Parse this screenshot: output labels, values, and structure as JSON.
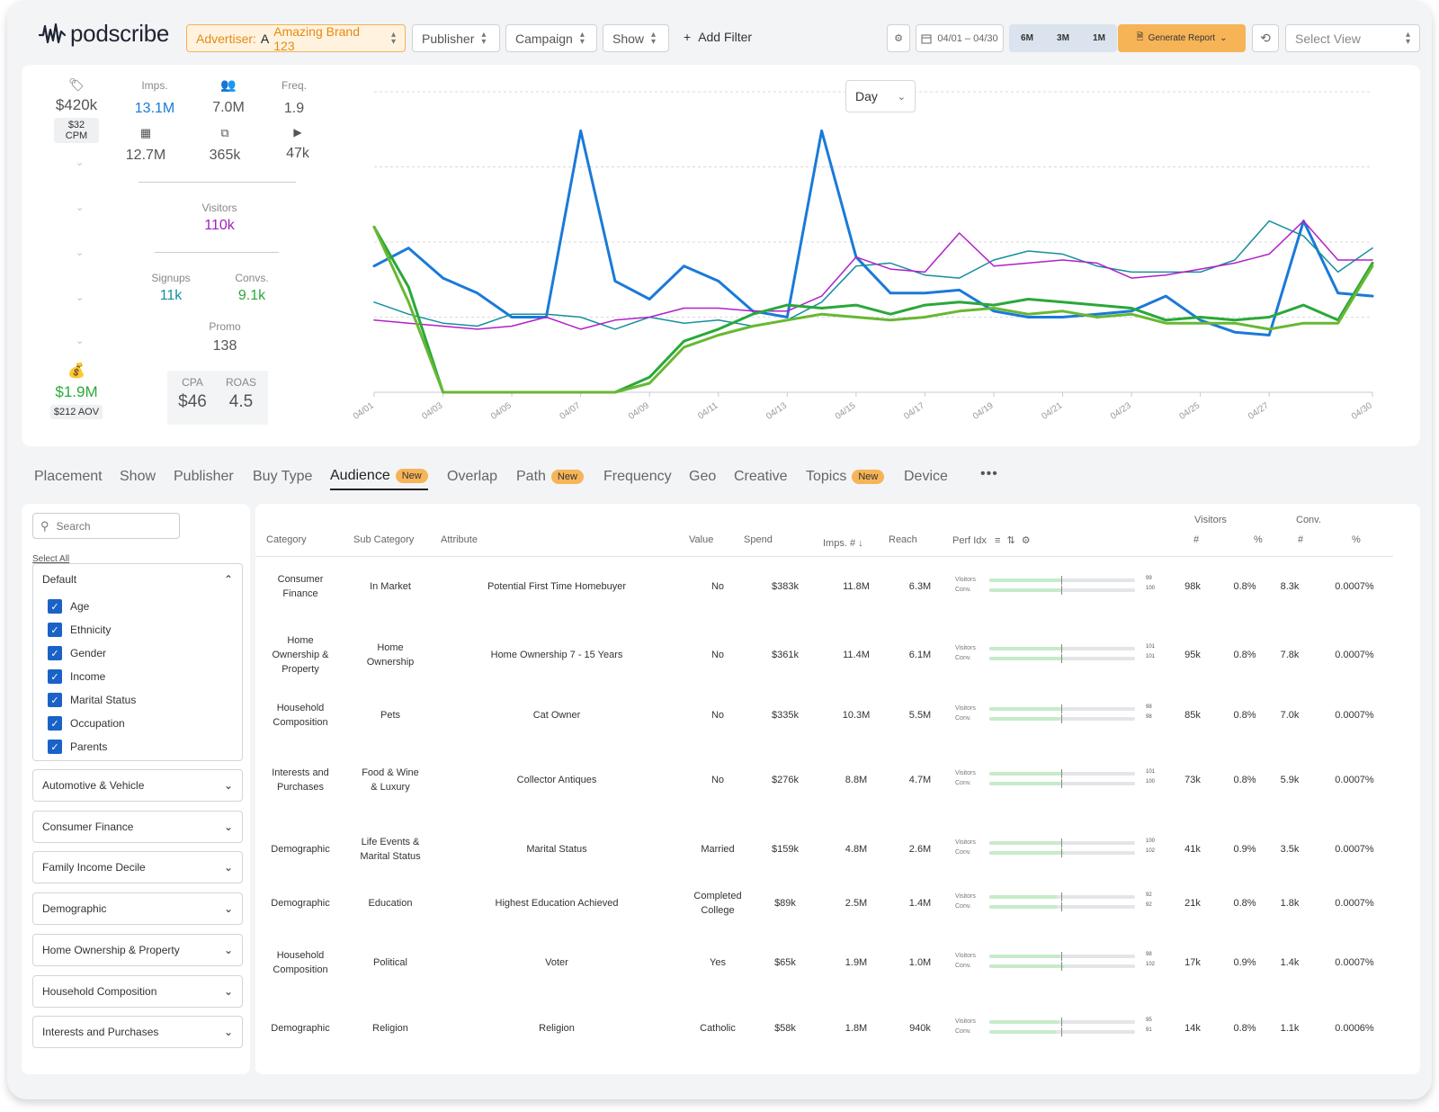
{
  "header": {
    "logo": "podscribe",
    "advertiser_label": "Advertiser:",
    "advertiser_initial": "A",
    "advertiser_value": "Amazing Brand 123",
    "publisher": "Publisher",
    "campaign": "Campaign",
    "show": "Show",
    "add_filter": "Add Filter",
    "date_range": "04/01 – 04/30",
    "ranges": [
      "6M",
      "3M",
      "1M"
    ],
    "generate_report": "Generate Report",
    "select_view": "Select View"
  },
  "kpi": {
    "spend": "$420k",
    "cpm": "$32 CPM",
    "imps_label": "Imps.",
    "imps": "13.1M",
    "reach": "7.0M",
    "freq_label": "Freq.",
    "freq": "1.9",
    "rss": "12.7M",
    "devices": "365k",
    "youtube": "47k",
    "visitors_label": "Visitors",
    "visitors": "110k",
    "signups_label": "Signups",
    "signups": "11k",
    "convs_label": "Convs.",
    "convs": "9.1k",
    "promo_label": "Promo",
    "promo": "138",
    "revenue": "$1.9M",
    "aov": "$212 AOV",
    "cpa_label": "CPA",
    "cpa": "$46",
    "roas_label": "ROAS",
    "roas": "4.5"
  },
  "chart_data": {
    "type": "line",
    "granularity": "Day",
    "x": [
      "04/01",
      "04/02",
      "04/03",
      "04/04",
      "04/05",
      "04/06",
      "04/07",
      "04/08",
      "04/09",
      "04/10",
      "04/11",
      "04/12",
      "04/13",
      "04/14",
      "04/15",
      "04/16",
      "04/17",
      "04/18",
      "04/19",
      "04/20",
      "04/21",
      "04/22",
      "04/23",
      "04/24",
      "04/25",
      "04/26",
      "04/27",
      "04/28",
      "04/29",
      "04/30"
    ],
    "xticks": [
      "04/01",
      "04/03",
      "04/05",
      "04/07",
      "04/09",
      "04/11",
      "04/13",
      "04/15",
      "04/17",
      "04/19",
      "04/21",
      "04/23",
      "04/25",
      "04/27",
      "04/30"
    ],
    "ylim": [
      0,
      100
    ],
    "series": [
      {
        "color": "#1a7ad8",
        "width": 3,
        "values": [
          42,
          48,
          38,
          33,
          25,
          25,
          87,
          37,
          31,
          42,
          37,
          27,
          25,
          87,
          45,
          33,
          33,
          34,
          27,
          25,
          25,
          26,
          27,
          32,
          24,
          20,
          19,
          57,
          33,
          32
        ]
      },
      {
        "color": "#168f9e",
        "width": 1.5,
        "values": [
          30,
          26,
          23,
          22,
          26,
          26,
          25,
          21,
          25,
          23,
          24,
          22,
          24,
          30,
          42,
          43,
          39,
          38,
          44,
          47,
          46,
          42,
          40,
          40,
          40,
          44,
          57,
          52,
          40,
          48
        ]
      },
      {
        "color": "#b120c9",
        "width": 1.5,
        "values": [
          24,
          23,
          22,
          21,
          22,
          25,
          21,
          24,
          25,
          28,
          28,
          27,
          27,
          32,
          45,
          41,
          40,
          53,
          42,
          43,
          44,
          43,
          38,
          39,
          41,
          43,
          46,
          57,
          44,
          44
        ]
      },
      {
        "color": "#2aa83a",
        "width": 3,
        "values": [
          55,
          35,
          0,
          0,
          0,
          0,
          0,
          0,
          5,
          17,
          21,
          26,
          29,
          28,
          29,
          26,
          29,
          30,
          29,
          31,
          30,
          29,
          28,
          24,
          25,
          24,
          25,
          29,
          24,
          43
        ]
      },
      {
        "color": "#68b832",
        "width": 3,
        "values": [
          55,
          30,
          0,
          0,
          0,
          0,
          0,
          0,
          3,
          15,
          19,
          22,
          24,
          26,
          25,
          24,
          25,
          27,
          28,
          26,
          27,
          25,
          26,
          23,
          23,
          23,
          21,
          23,
          23,
          42
        ]
      }
    ]
  },
  "tabs": [
    {
      "label": "Placement"
    },
    {
      "label": "Show"
    },
    {
      "label": "Publisher"
    },
    {
      "label": "Buy Type"
    },
    {
      "label": "Audience",
      "badge": "New"
    },
    {
      "label": "Overlap"
    },
    {
      "label": "Path",
      "badge": "New"
    },
    {
      "label": "Frequency"
    },
    {
      "label": "Geo"
    },
    {
      "label": "Creative"
    },
    {
      "label": "Topics",
      "badge": "New"
    },
    {
      "label": "Device"
    }
  ],
  "sidebar": {
    "search_placeholder": "Search",
    "select_all": "Select All",
    "default_group": "Default",
    "options": [
      "Age",
      "Ethnicity",
      "Gender",
      "Income",
      "Marital Status",
      "Occupation",
      "Parents"
    ],
    "groups": [
      "Automotive & Vehicle",
      "Consumer Finance",
      "Family Income Decile",
      "Demographic",
      "Home Ownership & Property",
      "Household Composition",
      "Interests and Purchases"
    ]
  },
  "table": {
    "group_visitors": "Visitors",
    "group_conv": "Conv.",
    "columns": {
      "category": "Category",
      "sub_category": "Sub Category",
      "attribute": "Attribute",
      "value": "Value",
      "spend": "Spend",
      "imps": "Imps.",
      "imps_hash": "#",
      "reach": "Reach",
      "perf": "Perf Idx",
      "vis_num": "#",
      "vis_pct": "%",
      "conv_num": "#",
      "conv_pct": "%"
    },
    "perf_labels": [
      "Visitors",
      "Conv."
    ],
    "rows": [
      {
        "category": "Consumer Finance",
        "sub": "In Market",
        "attr": "Potential First Time Homebuyer",
        "value": "No",
        "spend": "$383k",
        "imps": "11.8M",
        "reach": "6.3M",
        "pv": 99,
        "pc": 100,
        "pv_label": "99",
        "pc_label": "100",
        "vis": "98k",
        "vis_pct": "0.8%",
        "conv": "8.3k",
        "conv_pct": "0.0007%"
      },
      {
        "category": "Home Ownership & Property",
        "sub": "Home Ownership",
        "attr": "Home Ownership 7 - 15 Years",
        "value": "No",
        "spend": "$361k",
        "imps": "11.4M",
        "reach": "6.1M",
        "pv": 101,
        "pc": 101,
        "pv_label": "101",
        "pc_label": "101",
        "vis": "95k",
        "vis_pct": "0.8%",
        "conv": "7.8k",
        "conv_pct": "0.0007%"
      },
      {
        "category": "Household Composition",
        "sub": "Pets",
        "attr": "Cat Owner",
        "value": "No",
        "spend": "$335k",
        "imps": "10.3M",
        "reach": "5.5M",
        "pv": 98,
        "pc": 98,
        "pv_label": "98",
        "pc_label": "98",
        "vis": "85k",
        "vis_pct": "0.8%",
        "conv": "7.0k",
        "conv_pct": "0.0007%"
      },
      {
        "category": "Interests and Purchases",
        "sub": "Food & Wine & Luxury",
        "attr": "Collector Antiques",
        "value": "No",
        "spend": "$276k",
        "imps": "8.8M",
        "reach": "4.7M",
        "pv": 101,
        "pc": 100,
        "pv_label": "101",
        "pc_label": "100",
        "vis": "73k",
        "vis_pct": "0.8%",
        "conv": "5.9k",
        "conv_pct": "0.0007%"
      },
      {
        "category": "Demographic",
        "sub": "Life Events & Marital Status",
        "attr": "Marital Status",
        "value": "Married",
        "spend": "$159k",
        "imps": "4.8M",
        "reach": "2.6M",
        "pv": 100,
        "pc": 102,
        "pv_label": "100",
        "pc_label": "102",
        "vis": "41k",
        "vis_pct": "0.9%",
        "conv": "3.5k",
        "conv_pct": "0.0007%"
      },
      {
        "category": "Demographic",
        "sub": "Education",
        "attr": "Highest Education Achieved",
        "value": "Completed College",
        "spend": "$89k",
        "imps": "2.5M",
        "reach": "1.4M",
        "pv": 92,
        "pc": 92,
        "pv_label": "92",
        "pc_label": "92",
        "vis": "21k",
        "vis_pct": "0.8%",
        "conv": "1.8k",
        "conv_pct": "0.0007%"
      },
      {
        "category": "Household Composition",
        "sub": "Political",
        "attr": "Voter",
        "value": "Yes",
        "spend": "$65k",
        "imps": "1.9M",
        "reach": "1.0M",
        "pv": 98,
        "pc": 102,
        "pv_label": "98",
        "pc_label": "102",
        "vis": "17k",
        "vis_pct": "0.9%",
        "conv": "1.4k",
        "conv_pct": "0.0007%"
      },
      {
        "category": "Demographic",
        "sub": "Religion",
        "attr": "Religion",
        "value": "Catholic",
        "spend": "$58k",
        "imps": "1.8M",
        "reach": "940k",
        "pv": 95,
        "pc": 91,
        "pv_label": "95",
        "pc_label": "91",
        "vis": "14k",
        "vis_pct": "0.8%",
        "conv": "1.1k",
        "conv_pct": "0.0006%"
      }
    ]
  },
  "icons": {
    "settings": "gear-icon",
    "calendar": "calendar-icon",
    "history": "history-icon",
    "more": "more-icon"
  }
}
